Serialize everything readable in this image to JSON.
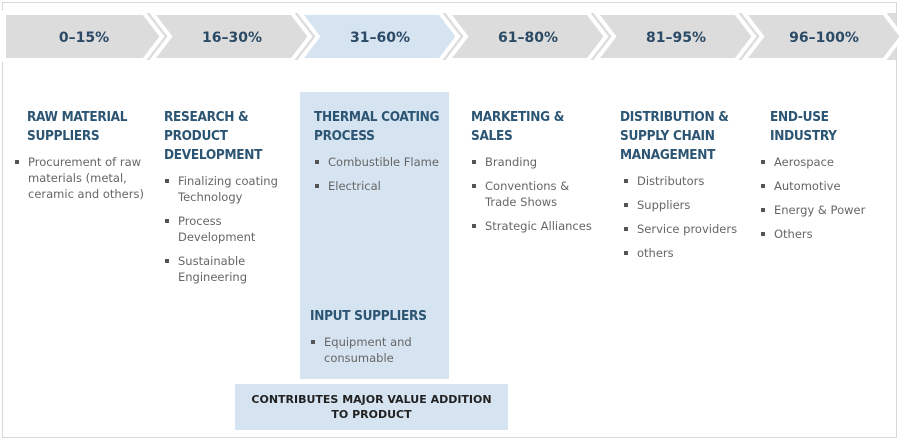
{
  "stages": [
    {
      "range": "0–15%",
      "title": "RAW MATERIAL SUPPLIERS",
      "items": [
        "Procurement of raw materials (metal, ceramic and others)"
      ]
    },
    {
      "range": "16–30%",
      "title": "RESEARCH & PRODUCT DEVELOPMENT",
      "items": [
        "Finalizing coating Technology",
        "Process Development",
        "Sustainable Engineering"
      ]
    },
    {
      "range": "31–60%",
      "title": "THERMAL COATING PROCESS",
      "items": [
        "Combustible Flame",
        "Electrical"
      ],
      "highlighted": true
    },
    {
      "range": "61–80%",
      "title": "MARKETING & SALES",
      "items": [
        "Branding",
        "Conventions & Trade Shows",
        "Strategic Alliances"
      ]
    },
    {
      "range": "81–95%",
      "title": "DISTRIBUTION & SUPPLY CHAIN MANAGEMENT",
      "items": [
        "Distributors",
        "Suppliers",
        "Service providers",
        "others"
      ]
    },
    {
      "range": "96–100%",
      "title": "END-USE INDUSTRY",
      "items": [
        "Aerospace",
        "Automotive",
        "Energy & Power",
        "Others"
      ]
    }
  ],
  "input_suppliers": {
    "title": "INPUT SUPPLIERS",
    "items": [
      "Equipment and consumable"
    ]
  },
  "footer": {
    "line1": "CONTRIBUTES MAJOR VALUE ADDITION",
    "line2": "TO PRODUCT"
  },
  "colors": {
    "band": "#dcdcdc",
    "chevron": "#dcdcdc",
    "chevron_highlight": "#d6e3f0",
    "highlight": "#d6e3f0",
    "title_text": "#2c5573",
    "range_text": "#2b4a66",
    "body_text": "#666666"
  }
}
